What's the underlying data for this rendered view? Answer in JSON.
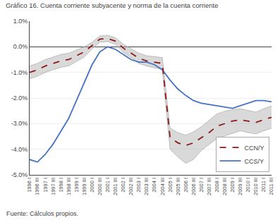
{
  "chart_data": {
    "type": "line",
    "title": "Gráfico 16. Cuenta corriente subyacente y norma de la cuenta corriente",
    "annotations": [
      "Fuente: Cálculos propios."
    ],
    "categories": [
      "1996 I",
      "1996 III",
      "1997 I",
      "1997 III",
      "1998 I",
      "1998 III",
      "1999 I",
      "1999 III",
      "2000 I",
      "2000 III",
      "2001 I",
      "2001 III",
      "2002 I",
      "2002 III",
      "2003 I",
      "2003 III",
      "2004 I",
      "2004 III",
      "2005 I",
      "2005 III",
      "2006 I",
      "2006 III",
      "2007 I",
      "2007 III",
      "2008 I",
      "2008 III",
      "2009 I",
      "2009 III",
      "2010 I",
      "2010 III",
      "2011 I",
      "2011 III"
    ],
    "series": [
      {
        "name": "CCS/Y",
        "color": "#4472C4",
        "line_style": "solid",
        "values": [
          -4.4,
          -4.5,
          -4.2,
          -3.8,
          -3.3,
          -2.8,
          -2.1,
          -1.4,
          -0.7,
          -0.2,
          0.0,
          -0.1,
          -0.3,
          -0.5,
          -0.6,
          -0.6,
          -0.7,
          -0.9,
          -1.3,
          -1.65,
          -1.9,
          -2.1,
          -2.2,
          -2.25,
          -2.3,
          -2.35,
          -2.4,
          -2.3,
          -2.2,
          -2.1,
          -2.1,
          -2.15
        ]
      },
      {
        "name": "CCN/Y",
        "color": "#8B1A1A",
        "line_style": "dashed",
        "values": [
          -1.0,
          -0.9,
          -0.75,
          -0.65,
          -0.55,
          -0.5,
          -0.35,
          -0.2,
          0.05,
          0.3,
          0.32,
          0.22,
          -0.05,
          -0.25,
          -0.45,
          -0.55,
          -0.6,
          -0.65,
          -3.55,
          -3.75,
          -3.85,
          -3.75,
          -3.55,
          -3.35,
          -3.1,
          -3.0,
          -2.9,
          -2.85,
          -2.9,
          -2.95,
          -2.85,
          -2.75
        ]
      }
    ],
    "band": {
      "color": "#AAAAAA",
      "upper": [
        -0.75,
        -0.65,
        -0.5,
        -0.4,
        -0.3,
        -0.25,
        -0.12,
        -0.0,
        0.18,
        0.42,
        0.45,
        0.35,
        0.1,
        -0.08,
        -0.25,
        -0.35,
        -0.38,
        -0.42,
        -3.18,
        -3.35,
        -3.45,
        -3.32,
        -3.12,
        -2.88,
        -2.62,
        -2.52,
        -2.45,
        -2.42,
        -2.48,
        -2.55,
        -2.42,
        -2.3
      ],
      "lower": [
        -1.25,
        -1.15,
        -1.0,
        -0.9,
        -0.8,
        -0.75,
        -0.58,
        -0.4,
        -0.08,
        0.18,
        0.2,
        0.1,
        -0.22,
        -0.42,
        -0.65,
        -0.75,
        -0.82,
        -0.88,
        -4.0,
        -4.3,
        -4.55,
        -4.4,
        -4.05,
        -3.82,
        -3.58,
        -3.48,
        -3.38,
        -3.28,
        -3.35,
        -3.4,
        -3.28,
        -3.18
      ]
    },
    "ylim": [
      -5.0,
      1.0
    ],
    "yticks": [
      {
        "value": 1.0,
        "label": "1.0%"
      },
      {
        "value": 0.0,
        "label": "0.0%"
      },
      {
        "value": -1.0,
        "label": "-1.0%"
      },
      {
        "value": -2.0,
        "label": "-2.0%"
      },
      {
        "value": -3.0,
        "label": "-3.0%"
      },
      {
        "value": -4.0,
        "label": "-4.0%"
      },
      {
        "value": -5.0,
        "label": "-5.0%"
      }
    ],
    "grid": true,
    "legend": "lower right"
  }
}
